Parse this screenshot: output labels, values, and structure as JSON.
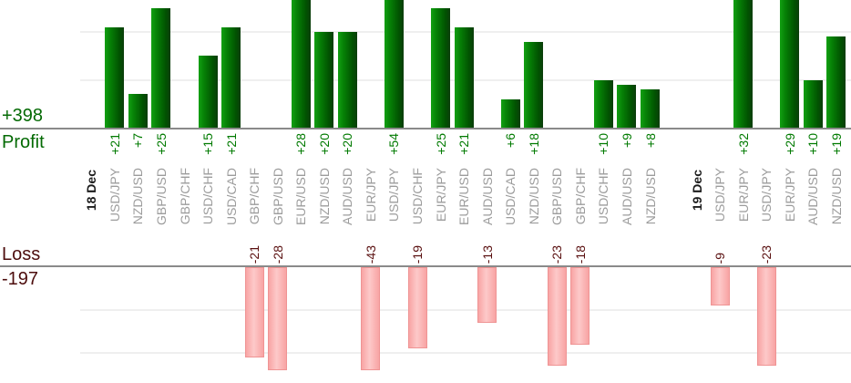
{
  "chart_data": {
    "type": "bar",
    "orientation": "vertical",
    "grid": true,
    "gridline_interval": 10,
    "profit_panel": {
      "label": "Profit",
      "total_label": "+398",
      "total": 398,
      "text_color": "#046a04",
      "bar_color": "#068106"
    },
    "loss_panel": {
      "label": "Loss",
      "total_label": "-197",
      "total": -197,
      "text_color": "#4d0d0d",
      "bar_color": "#f8a4a4"
    },
    "columns": [
      {
        "kind": "date",
        "label": "18 Dec"
      },
      {
        "kind": "pair",
        "label": "USD/JPY",
        "value": 21,
        "display": "+21"
      },
      {
        "kind": "pair",
        "label": "NZD/USD",
        "value": 7,
        "display": "+7"
      },
      {
        "kind": "pair",
        "label": "GBP/USD",
        "value": 25,
        "display": "+25"
      },
      {
        "kind": "pair",
        "label": "GBP/CHF",
        "value": null,
        "display": null
      },
      {
        "kind": "pair",
        "label": "USD/CHF",
        "value": 15,
        "display": "+15"
      },
      {
        "kind": "pair",
        "label": "USD/CAD",
        "value": 21,
        "display": "+21"
      },
      {
        "kind": "pair",
        "label": "GBP/CHF",
        "value": -21,
        "display": "-21"
      },
      {
        "kind": "pair",
        "label": "GBP/USD",
        "value": -28,
        "display": "-28"
      },
      {
        "kind": "pair",
        "label": "EUR/USD",
        "value": 28,
        "display": "+28"
      },
      {
        "kind": "pair",
        "label": "NZD/USD",
        "value": 20,
        "display": "+20"
      },
      {
        "kind": "pair",
        "label": "AUD/USD",
        "value": 20,
        "display": "+20"
      },
      {
        "kind": "pair",
        "label": "EUR/JPY",
        "value": -43,
        "display": "-43"
      },
      {
        "kind": "pair",
        "label": "USD/JPY",
        "value": 54,
        "display": "+54"
      },
      {
        "kind": "pair",
        "label": "USD/CHF",
        "value": -19,
        "display": "-19"
      },
      {
        "kind": "pair",
        "label": "EUR/JPY",
        "value": 25,
        "display": "+25"
      },
      {
        "kind": "pair",
        "label": "EUR/USD",
        "value": 21,
        "display": "+21"
      },
      {
        "kind": "pair",
        "label": "AUD/USD",
        "value": -13,
        "display": "-13"
      },
      {
        "kind": "pair",
        "label": "USD/CAD",
        "value": 6,
        "display": "+6"
      },
      {
        "kind": "pair",
        "label": "NZD/USD",
        "value": 18,
        "display": "+18"
      },
      {
        "kind": "pair",
        "label": "GBP/USD",
        "value": -23,
        "display": "-23"
      },
      {
        "kind": "pair",
        "label": "GBP/CHF",
        "value": -18,
        "display": "-18"
      },
      {
        "kind": "pair",
        "label": "USD/CHF",
        "value": 10,
        "display": "+10"
      },
      {
        "kind": "pair",
        "label": "AUD/USD",
        "value": 9,
        "display": "+9"
      },
      {
        "kind": "pair",
        "label": "NZD/USD",
        "value": 8,
        "display": "+8"
      },
      {
        "kind": "spacer"
      },
      {
        "kind": "date",
        "label": "19 Dec"
      },
      {
        "kind": "pair",
        "label": "USD/JPY",
        "value": -9,
        "display": "-9"
      },
      {
        "kind": "pair",
        "label": "EUR/JPY",
        "value": 32,
        "display": "+32"
      },
      {
        "kind": "pair",
        "label": "USD/JPY",
        "value": -23,
        "display": "-23"
      },
      {
        "kind": "pair",
        "label": "EUR/JPY",
        "value": 29,
        "display": "+29"
      },
      {
        "kind": "pair",
        "label": "AUD/USD",
        "value": 10,
        "display": "+10"
      },
      {
        "kind": "pair",
        "label": "NZD/USD",
        "value": 19,
        "display": "+19"
      }
    ]
  }
}
